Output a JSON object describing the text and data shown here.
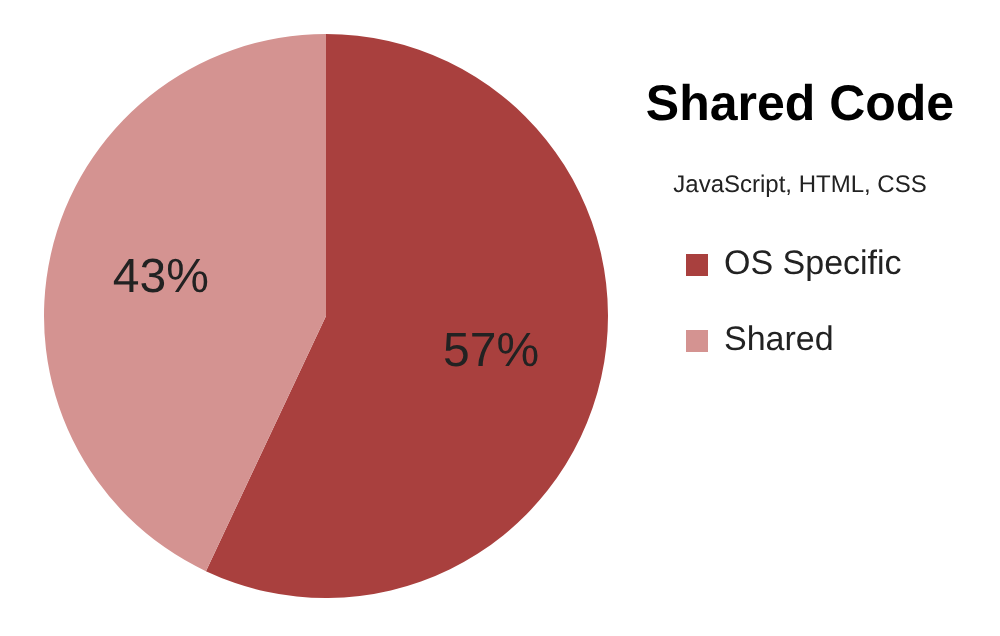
{
  "chart_data": {
    "type": "pie",
    "title": "Shared Code",
    "subtitle": "JavaScript, HTML, CSS",
    "categories": [
      "OS Specific",
      "Shared"
    ],
    "values": [
      57,
      43
    ],
    "colors": [
      "#a9403e",
      "#d49391"
    ],
    "value_labels": [
      "57%",
      "43%"
    ],
    "legend": "right"
  }
}
